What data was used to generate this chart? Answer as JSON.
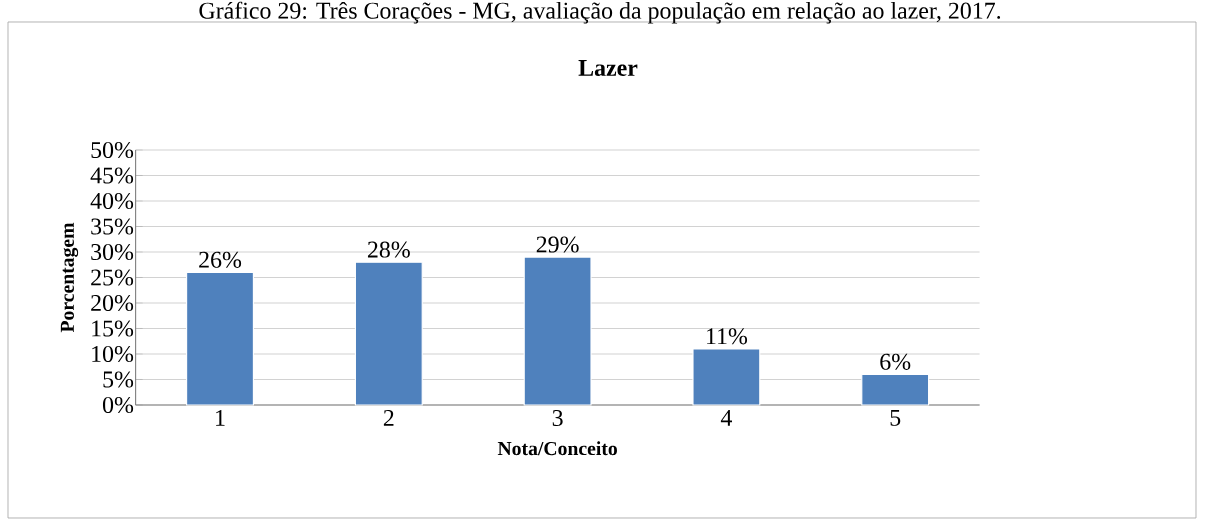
{
  "chart_data": {
    "type": "bar",
    "title": "Lazer",
    "xlabel": "Nota/Conceito",
    "ylabel": "Porcentagem",
    "annotations": [
      "Gráfico 29: Três Corações - MG, avaliação da população em relação ao lazer, 2017."
    ],
    "categories": [
      "1",
      "2",
      "3",
      "4",
      "5"
    ],
    "values": [
      26,
      28,
      29,
      11,
      6
    ],
    "value_labels": [
      "26%",
      "28%",
      "29%",
      "11%",
      "6%"
    ],
    "color": "#4f81bd",
    "ylim": [
      0,
      50
    ],
    "yticks": [
      {
        "value": 0,
        "label": "0%"
      },
      {
        "value": 5,
        "label": "5%"
      },
      {
        "value": 10,
        "label": "10%"
      },
      {
        "value": 15,
        "label": "15%"
      },
      {
        "value": 20,
        "label": "20%"
      },
      {
        "value": 25,
        "label": "25%"
      },
      {
        "value": 30,
        "label": "30%"
      },
      {
        "value": 35,
        "label": "35%"
      },
      {
        "value": 40,
        "label": "40%"
      },
      {
        "value": 45,
        "label": "45%"
      },
      {
        "value": 50,
        "label": "50%"
      }
    ],
    "grid": "y"
  }
}
